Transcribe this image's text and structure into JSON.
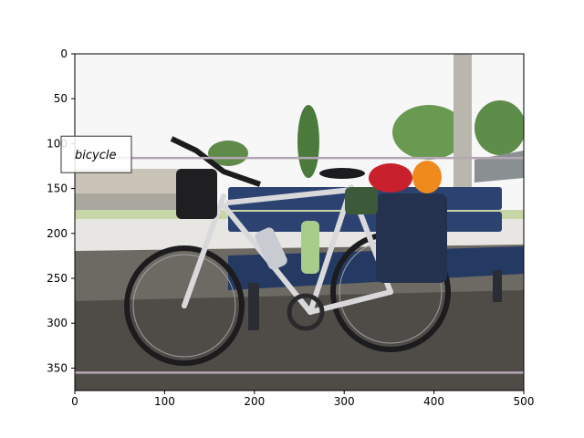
{
  "chart_data": {
    "type": "image",
    "title": "",
    "xlabel": "",
    "ylabel": "",
    "xlim": [
      0,
      500
    ],
    "ylim": [
      375,
      0
    ],
    "x_ticks": [
      0,
      100,
      200,
      300,
      400,
      500
    ],
    "y_ticks": [
      0,
      50,
      100,
      150,
      200,
      250,
      300,
      350
    ],
    "x_tick_labels": [
      "0",
      "100",
      "200",
      "300",
      "400",
      "500"
    ],
    "y_tick_labels": [
      "0",
      "50",
      "100",
      "150",
      "200",
      "250",
      "300",
      "350"
    ],
    "annotations": [
      {
        "label": "bicycle",
        "x": 0,
        "y": 111
      }
    ],
    "horizontal_lines": [
      {
        "y": 116,
        "color": "#b4a6b4"
      },
      {
        "y": 355,
        "color": "#b4a6b4"
      }
    ],
    "grid": false
  },
  "colors": {
    "sky": "#f4f6f4",
    "bench": "#2c4270",
    "ground": "#6d6a64",
    "frame": "#d9d9dc",
    "pannier": "#25324f",
    "helmet": "#f08a1c",
    "bag_red": "#c8202c",
    "tree": "#4c7a3c"
  }
}
